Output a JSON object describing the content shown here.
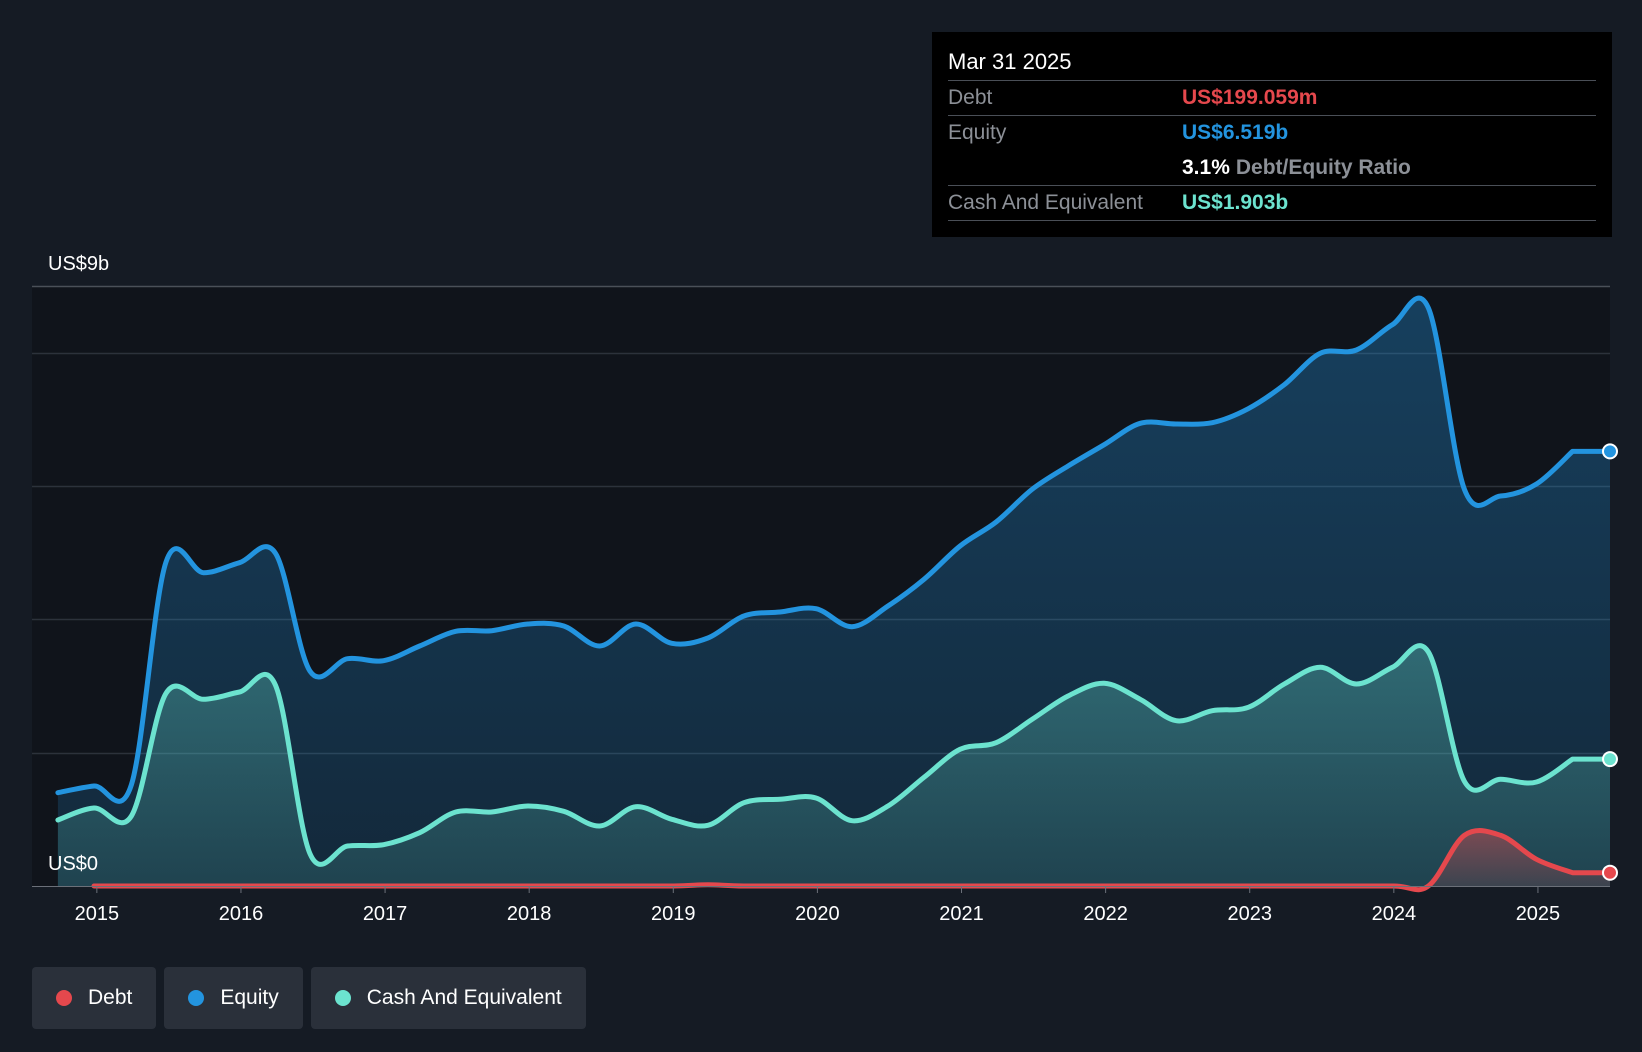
{
  "tooltip": {
    "date": "Mar 31 2025",
    "rows": [
      {
        "label": "Debt",
        "value": "US$199.059m"
      },
      {
        "label": "Equity",
        "value": "US$6.519b"
      },
      {
        "ratio_value": "3.1%",
        "ratio_label": "Debt/Equity Ratio"
      },
      {
        "label": "Cash And Equivalent",
        "value": "US$1.903b"
      }
    ]
  },
  "legend": [
    {
      "label": "Debt",
      "color": "#e5484d"
    },
    {
      "label": "Equity",
      "color": "#2394df"
    },
    {
      "label": "Cash And Equivalent",
      "color": "#6ce3cf"
    }
  ],
  "chart_data": {
    "type": "area",
    "y_top_label": "US$9b",
    "y_bottom_label": "US$0",
    "ylim": [
      0,
      9
    ],
    "unit": "US$ billions",
    "xlim": [
      2014.55,
      2025.5
    ],
    "x_ticks": [
      "2015",
      "2016",
      "2017",
      "2018",
      "2019",
      "2020",
      "2021",
      "2022",
      "2023",
      "2024",
      "2025"
    ],
    "series": [
      {
        "name": "Equity",
        "color": "#2394df",
        "x": [
          2014.73,
          2014.98,
          2015.24,
          2015.48,
          2015.74,
          2015.99,
          2016.24,
          2016.48,
          2016.74,
          2016.99,
          2017.24,
          2017.49,
          2017.74,
          2017.99,
          2018.24,
          2018.49,
          2018.74,
          2018.99,
          2019.24,
          2019.49,
          2019.74,
          2019.99,
          2020.24,
          2020.49,
          2020.74,
          2020.99,
          2021.24,
          2021.49,
          2021.74,
          2021.99,
          2022.24,
          2022.49,
          2022.74,
          2022.99,
          2023.24,
          2023.49,
          2023.74,
          2023.99,
          2024.24,
          2024.49,
          2024.74,
          2024.99,
          2025.24
        ],
        "values": [
          1.4,
          1.5,
          1.52,
          4.86,
          4.7,
          4.85,
          4.99,
          3.22,
          3.41,
          3.38,
          3.6,
          3.82,
          3.83,
          3.93,
          3.9,
          3.6,
          3.93,
          3.64,
          3.72,
          4.05,
          4.11,
          4.16,
          3.89,
          4.2,
          4.6,
          5.1,
          5.46,
          5.95,
          6.3,
          6.62,
          6.94,
          6.93,
          6.95,
          7.16,
          7.52,
          7.99,
          8.04,
          8.42,
          8.67,
          5.95,
          5.85,
          6.03,
          6.519
        ]
      },
      {
        "name": "Cash And Equivalent",
        "color": "#6ce3cf",
        "x": [
          2014.73,
          2014.98,
          2015.24,
          2015.48,
          2015.74,
          2015.99,
          2016.24,
          2016.48,
          2016.74,
          2016.99,
          2017.24,
          2017.49,
          2017.74,
          2017.99,
          2018.24,
          2018.49,
          2018.74,
          2018.99,
          2019.24,
          2019.49,
          2019.74,
          2019.99,
          2020.24,
          2020.49,
          2020.74,
          2020.99,
          2021.24,
          2021.49,
          2021.74,
          2021.99,
          2022.24,
          2022.49,
          2022.74,
          2022.99,
          2023.24,
          2023.49,
          2023.74,
          2023.99,
          2024.24,
          2024.49,
          2024.74,
          2024.99,
          2025.24
        ],
        "values": [
          0.99,
          1.17,
          1.05,
          2.89,
          2.8,
          2.91,
          3.01,
          0.48,
          0.6,
          0.62,
          0.8,
          1.11,
          1.11,
          1.2,
          1.12,
          0.9,
          1.19,
          1.0,
          0.91,
          1.25,
          1.3,
          1.32,
          0.98,
          1.2,
          1.63,
          2.05,
          2.15,
          2.5,
          2.85,
          3.04,
          2.8,
          2.48,
          2.63,
          2.68,
          3.03,
          3.28,
          3.03,
          3.28,
          3.51,
          1.57,
          1.6,
          1.56,
          1.903
        ]
      },
      {
        "name": "Debt",
        "color": "#e5484d",
        "x": [
          2014.98,
          2015.5,
          2016.0,
          2016.5,
          2017.0,
          2017.5,
          2018.0,
          2018.5,
          2019.0,
          2019.24,
          2019.49,
          2020.0,
          2020.5,
          2021.0,
          2021.5,
          2022.0,
          2022.5,
          2023.0,
          2023.5,
          2024.0,
          2024.24,
          2024.49,
          2024.74,
          2024.99,
          2025.24
        ],
        "values": [
          0.0,
          0.0,
          0.0,
          0.0,
          0.0,
          0.0,
          0.0,
          0.0,
          0.0,
          0.02,
          0.0,
          0.0,
          0.0,
          0.0,
          0.0,
          0.0,
          0.0,
          0.0,
          0.0,
          0.0,
          0.0,
          0.76,
          0.76,
          0.4,
          0.199
        ]
      }
    ]
  }
}
